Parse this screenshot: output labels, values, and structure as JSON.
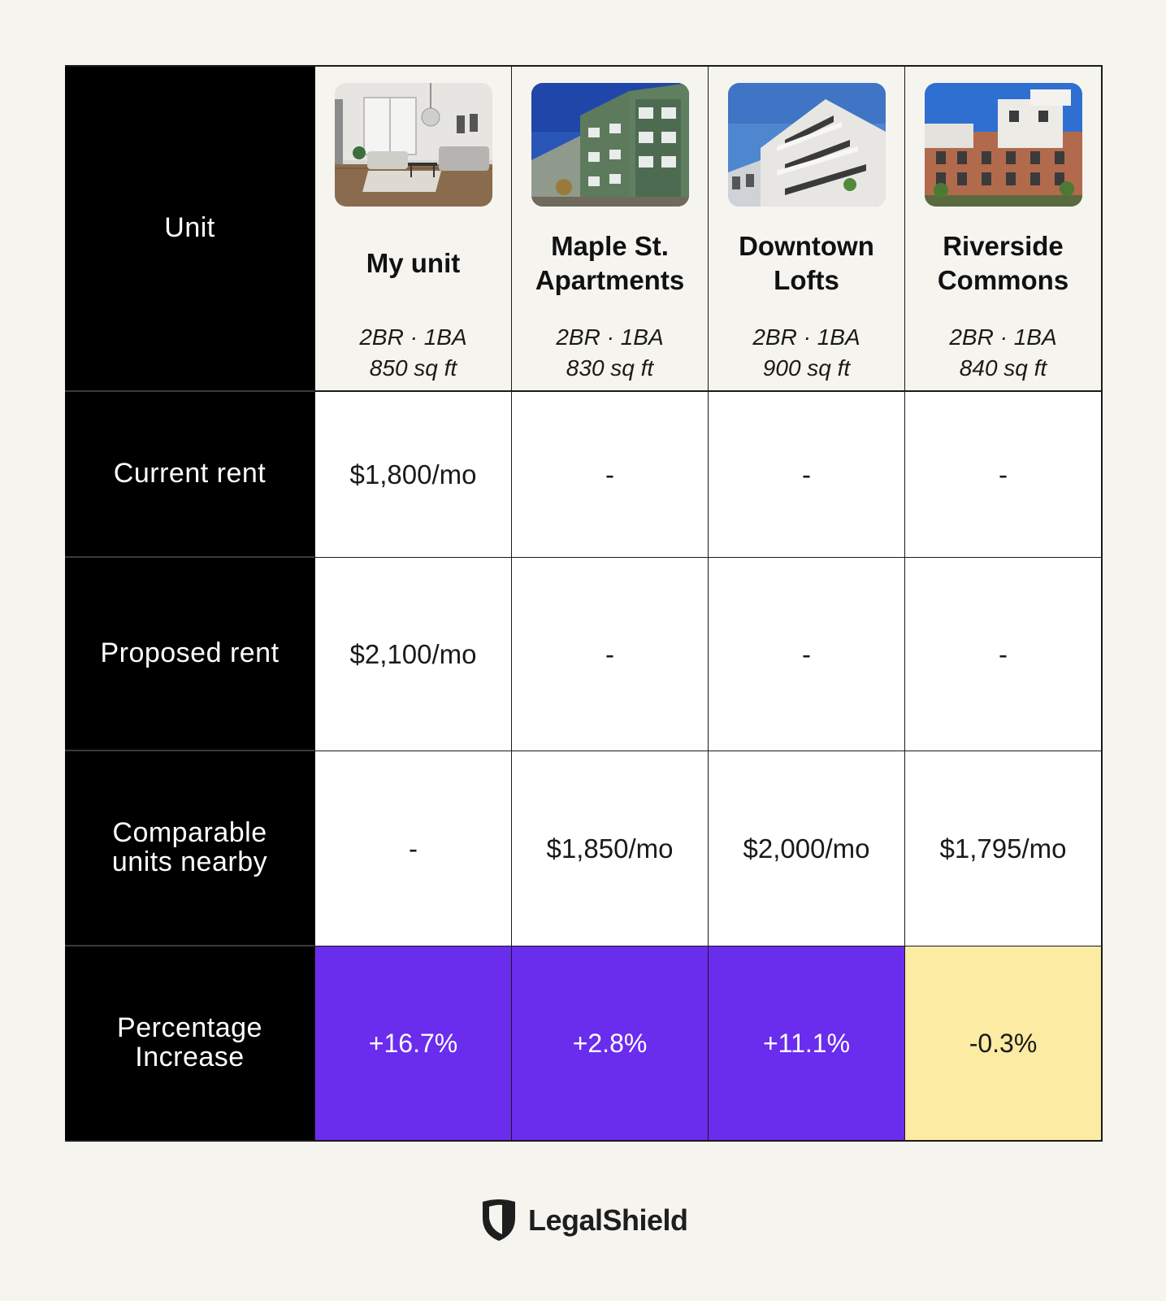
{
  "row_labels": {
    "unit": "Unit",
    "current_rent": "Current rent",
    "proposed_rent": "Proposed rent",
    "comparable": "Comparable units nearby",
    "percentage": "Percentage Increase"
  },
  "units": [
    {
      "name": "My unit",
      "beds_baths": "2BR · 1BA",
      "size": "850 sq ft",
      "photo": "living-room-photo",
      "current_rent": "$1,800/mo",
      "proposed_rent": "$2,100/mo",
      "comparable": "-",
      "percentage": "+16.7%",
      "pct_color": "#6a2ced"
    },
    {
      "name": "Maple St. Apartments",
      "beds_baths": "2BR · 1BA",
      "size": "830 sq ft",
      "photo": "green-apartment-building-photo",
      "current_rent": "-",
      "proposed_rent": "-",
      "comparable": "$1,850/mo",
      "percentage": "+2.8%",
      "pct_color": "#6a2ced"
    },
    {
      "name": "Downtown Lofts",
      "beds_baths": "2BR · 1BA",
      "size": "900 sq ft",
      "photo": "modern-loft-building-photo",
      "current_rent": "-",
      "proposed_rent": "-",
      "comparable": "$2,000/mo",
      "percentage": "+11.1%",
      "pct_color": "#6a2ced"
    },
    {
      "name": "Riverside Commons",
      "beds_baths": "2BR · 1BA",
      "size": "840 sq ft",
      "photo": "brick-apartment-building-photo",
      "current_rent": "-",
      "proposed_rent": "-",
      "comparable": "$1,795/mo",
      "percentage": "-0.3%",
      "pct_color": "#fbeba3"
    }
  ],
  "colors": {
    "purple": "#6a2ced",
    "yellow": "#fbeba3",
    "header_bg": "#000000",
    "page_bg": "#f5f4ef"
  },
  "logo": {
    "text": "LegalShield",
    "icon": "shield-icon"
  }
}
